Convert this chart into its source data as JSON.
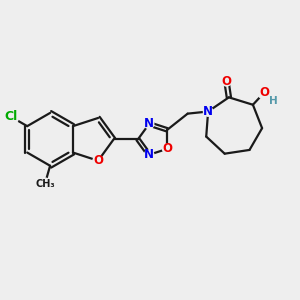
{
  "bg_color": "#eeeeee",
  "bond_color": "#1a1a1a",
  "bond_width": 1.6,
  "atom_colors": {
    "C": "#1a1a1a",
    "N": "#0000ee",
    "O": "#ee0000",
    "Cl": "#00aa00",
    "H": "#5599aa"
  },
  "font_size": 8.5
}
